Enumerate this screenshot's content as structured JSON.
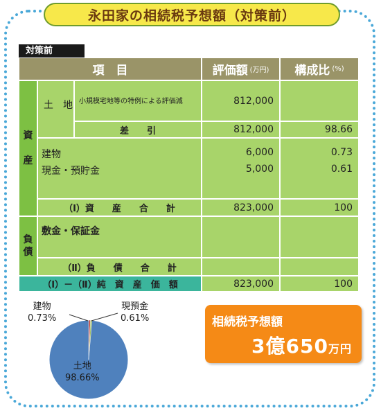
{
  "title": "永田家の相続税予想額（対策前）",
  "tag": "対策前",
  "table": {
    "header": {
      "item": "項　目",
      "value": "評価額",
      "value_unit": "(万円)",
      "ratio": "構成比",
      "ratio_unit": "(%)"
    },
    "assets_label": "資\n\n産",
    "liabilities_label": "負\n債",
    "land_label": "土　地",
    "land_detail": "小規模宅地等の特例による評価減",
    "land_value": "812,000",
    "diff_label": "差　　引",
    "diff_value": "812,000",
    "diff_ratio": "98.66",
    "building_label": "建物",
    "building_value": "6,000",
    "building_ratio": "0.73",
    "cash_label": "現金・預貯金",
    "cash_value": "5,000",
    "cash_ratio": "0.61",
    "asset_total_label": "（Ⅰ）資　　産　　合　　計",
    "asset_total_value": "823,000",
    "asset_total_ratio": "100",
    "deposit_label": "敷金・保証金",
    "liab_total_label": "（Ⅱ）負　　債　　合　　計",
    "net_label": "（Ⅰ）－（Ⅱ）純　資　産　価　額",
    "net_value": "823,000",
    "net_ratio": "100"
  },
  "pie": {
    "building_name": "建物",
    "building_pct": "0.73%",
    "cash_name": "現預金",
    "cash_pct": "0.61%",
    "land_name": "土地",
    "land_pct": "98.66%",
    "land_color": "#4f81bd",
    "building_color": "#c0504d",
    "cash_color": "#9bbb59"
  },
  "result": {
    "label": "相続税予想額",
    "value": "3億650",
    "unit": "万円"
  },
  "colors": {
    "frame": "#4aa8d8",
    "title_bg": "#f7e84a",
    "header": "#9a9468",
    "green": "#a8d46a",
    "teal": "#3bb59c",
    "orange": "#f58a16"
  }
}
